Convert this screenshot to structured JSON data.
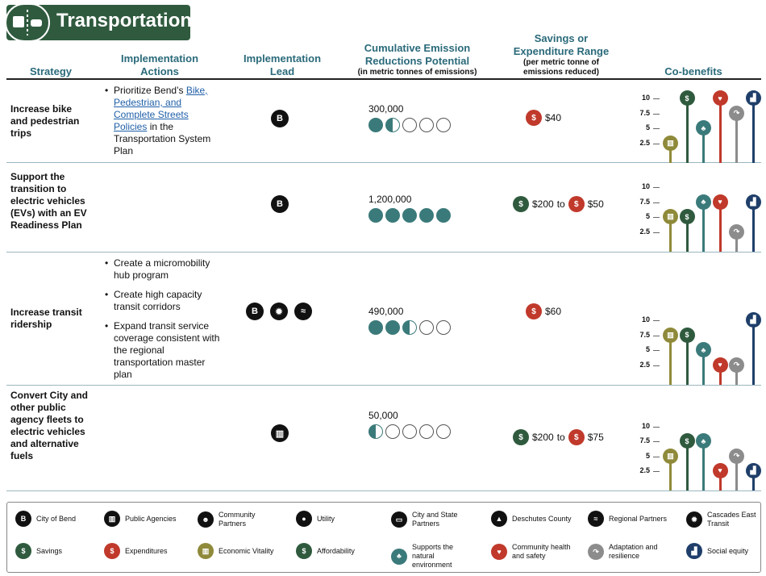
{
  "banner": {
    "title": "Transportation"
  },
  "headers": {
    "strategy": "Strategy",
    "actions": "Implementation Actions",
    "lead": "Implementation Lead",
    "emission_title": "Cumulative Emission Reductions Potential",
    "emission_sub": "(in metric tonnes of emissions)",
    "savings_title": "Savings or Expenditure Range",
    "savings_sub": "(per metric tonne of emissions reduced)",
    "cobenefits": "Co-benefits"
  },
  "rows": [
    {
      "strategy": "Increase bike and pedestrian trips",
      "actions": [
        {
          "pre": "Prioritize Bend’s ",
          "link": "Bike, Pedestrian, and Complete Streets Policies",
          "post": " in the Transportation System Plan"
        }
      ],
      "lead_icons": [
        "city-of-bend"
      ],
      "emission_value": "300,000",
      "dots": [
        1,
        0.5,
        0,
        0,
        0
      ],
      "savings": [
        {
          "type": "expenditure",
          "value": "$40"
        }
      ],
      "cobenefits": {
        "economic_vitality": 2.5,
        "affordability": 10,
        "natural_environment": 5,
        "community_health": 10,
        "adaptation": 7.5,
        "social_equity": 10
      }
    },
    {
      "strategy": "Support the transition to electric vehicles (EVs) with an EV Readiness Plan",
      "actions": [],
      "lead_icons": [
        "city-of-bend"
      ],
      "emission_value": "1,200,000",
      "dots": [
        1,
        1,
        1,
        1,
        1
      ],
      "savings": [
        {
          "type": "savings",
          "value": "$200"
        },
        {
          "type": "sep",
          "value": "to"
        },
        {
          "type": "expenditure",
          "value": "$50"
        }
      ],
      "cobenefits": {
        "economic_vitality": 5,
        "affordability": 5,
        "natural_environment": 7.5,
        "community_health": 7.5,
        "adaptation": 2.5,
        "social_equity": 7.5
      }
    },
    {
      "strategy": "Increase transit ridership",
      "actions": [
        {
          "pre": "Create a micromobility hub program",
          "link": "",
          "post": ""
        },
        {
          "pre": "Create high capacity transit corridors",
          "link": "",
          "post": ""
        },
        {
          "pre": "Expand transit service coverage consistent with the regional transportation master plan",
          "link": "",
          "post": ""
        }
      ],
      "lead_icons": [
        "city-of-bend",
        "cascades-east-transit",
        "regional-partners"
      ],
      "emission_value": "490,000",
      "dots": [
        1,
        1,
        0.5,
        0,
        0
      ],
      "savings": [
        {
          "type": "expenditure",
          "value": "$60"
        }
      ],
      "cobenefits": {
        "economic_vitality": 7.5,
        "affordability": 7.5,
        "natural_environment": 5,
        "community_health": 2.5,
        "adaptation": 2.5,
        "social_equity": 10
      }
    },
    {
      "strategy": "Convert City and other public agency fleets to electric vehicles and alternative fuels",
      "actions": [],
      "lead_icons": [
        "public-agencies"
      ],
      "emission_value": "50,000",
      "dots": [
        0.5,
        0,
        0,
        0,
        0
      ],
      "savings": [
        {
          "type": "savings",
          "value": "$200"
        },
        {
          "type": "sep",
          "value": "to"
        },
        {
          "type": "expenditure",
          "value": "$75"
        }
      ],
      "cobenefits": {
        "economic_vitality": 5,
        "affordability": 7.5,
        "natural_environment": 7.5,
        "community_health": 2.5,
        "adaptation": 5,
        "social_equity": 2.5
      }
    }
  ],
  "chart_ticks": [
    "10",
    "7.5",
    "5",
    "2.5"
  ],
  "cobenefit_colors": {
    "economic_vitality": "#8f8a3a",
    "affordability": "#2f5a3e",
    "natural_environment": "#3b7a7a",
    "community_health": "#c0392b",
    "adaptation": "#8c8c8c",
    "social_equity": "#1f3f6a"
  },
  "legend": [
    {
      "icon": "city-of-bend-icon",
      "label": "City of Bend"
    },
    {
      "icon": "public-agencies-icon",
      "label": "Public Agencies"
    },
    {
      "icon": "community-partners-icon",
      "label": "Community Partners"
    },
    {
      "icon": "utility-icon",
      "label": "Utility"
    },
    {
      "icon": "city-state-partners-icon",
      "label": "City and State Partners"
    },
    {
      "icon": "deschutes-county-icon",
      "label": "Deschutes County"
    },
    {
      "icon": "regional-partners-icon",
      "label": "Regional Partners"
    },
    {
      "icon": "cascades-east-transit-icon",
      "label": "Cascades East Transit"
    },
    {
      "icon": "savings-icon",
      "label": "Savings"
    },
    {
      "icon": "expenditures-icon",
      "label": "Expenditures"
    },
    {
      "icon": "economic-vitality-icon",
      "label": "Economic Vitality"
    },
    {
      "icon": "affordability-icon",
      "label": "Affordability"
    },
    {
      "icon": "natural-environment-icon",
      "label": "Supports the natural environment"
    },
    {
      "icon": "community-health-icon",
      "label": "Community health and safety"
    },
    {
      "icon": "adaptation-icon",
      "label": "Adaptation and resilience"
    },
    {
      "icon": "social-equity-icon",
      "label": "Social equity"
    }
  ]
}
